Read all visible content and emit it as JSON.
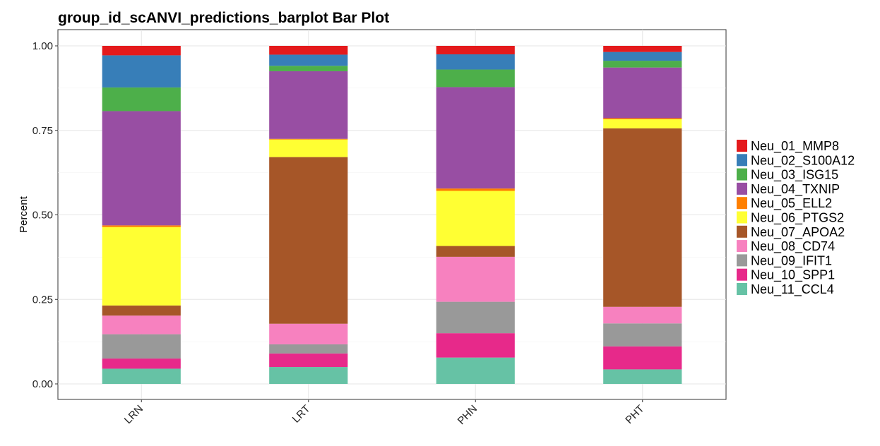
{
  "chart_data": {
    "type": "bar",
    "stacked": true,
    "title": "group_id_scANVI_predictions_barplot Bar Plot",
    "xlabel": "",
    "ylabel": "Percent",
    "ylim": [
      0,
      1
    ],
    "yticks": [
      "0.00",
      "0.25",
      "0.50",
      "0.75",
      "1.00"
    ],
    "categories": [
      "LRN",
      "LRT",
      "PHN",
      "PHT"
    ],
    "grid": true,
    "legend_position": "right",
    "series": [
      {
        "name": "Neu_11_CCL4",
        "color": "#66C2A5",
        "values": [
          0.045,
          0.05,
          0.078,
          0.043
        ]
      },
      {
        "name": "Neu_10_SPP1",
        "color": "#E7298A",
        "values": [
          0.03,
          0.04,
          0.072,
          0.068
        ]
      },
      {
        "name": "Neu_09_IFIT1",
        "color": "#999999",
        "values": [
          0.072,
          0.027,
          0.093,
          0.068
        ]
      },
      {
        "name": "Neu_08_CD74",
        "color": "#F781BF",
        "values": [
          0.055,
          0.061,
          0.133,
          0.049
        ]
      },
      {
        "name": "Neu_07_APOA2",
        "color": "#A65628",
        "values": [
          0.03,
          0.493,
          0.032,
          0.528
        ]
      },
      {
        "name": "Neu_06_PTGS2",
        "color": "#FFFF33",
        "values": [
          0.232,
          0.052,
          0.163,
          0.027
        ]
      },
      {
        "name": "Neu_05_ELL2",
        "color": "#FF7F00",
        "values": [
          0.005,
          0.002,
          0.007,
          0.003
        ]
      },
      {
        "name": "Neu_04_TXNIP",
        "color": "#984EA3",
        "values": [
          0.338,
          0.2,
          0.3,
          0.15
        ]
      },
      {
        "name": "Neu_03_ISG15",
        "color": "#4DAF4A",
        "values": [
          0.07,
          0.016,
          0.052,
          0.02
        ]
      },
      {
        "name": "Neu_02_S100A12",
        "color": "#377EB8",
        "values": [
          0.095,
          0.033,
          0.045,
          0.026
        ]
      },
      {
        "name": "Neu_01_MMP8",
        "color": "#E41A1C",
        "values": [
          0.028,
          0.026,
          0.025,
          0.018
        ]
      }
    ],
    "legend_order": [
      "Neu_01_MMP8",
      "Neu_02_S100A12",
      "Neu_03_ISG15",
      "Neu_04_TXNIP",
      "Neu_05_ELL2",
      "Neu_06_PTGS2",
      "Neu_07_APOA2",
      "Neu_08_CD74",
      "Neu_09_IFIT1",
      "Neu_10_SPP1",
      "Neu_11_CCL4"
    ]
  }
}
